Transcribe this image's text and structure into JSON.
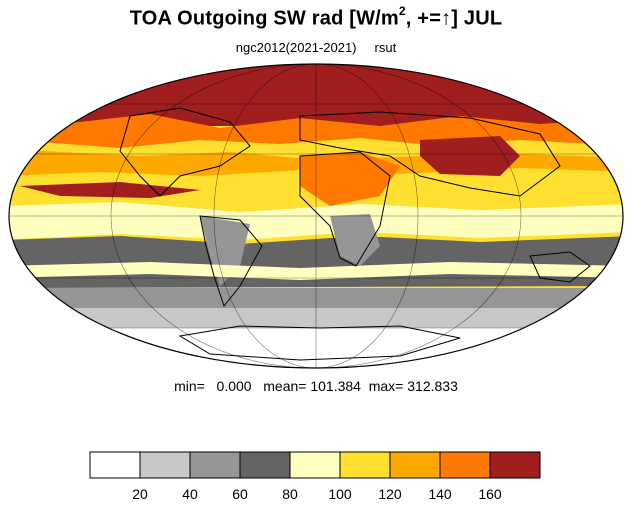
{
  "title": {
    "main": "TOA Outgoing SW rad [W/m",
    "sup": "2",
    "rest": ", +=↑] JUL"
  },
  "subtitle": {
    "case": "ngc2012(2021-2021)",
    "variable": "rsut"
  },
  "stats": {
    "min_label": "min=",
    "min": "0.000",
    "mean_label": "mean=",
    "mean": "101.384",
    "max_label": "max=",
    "max": "312.833"
  },
  "colorbar": {
    "colors": [
      "#ffffff",
      "#c8c8c8",
      "#969696",
      "#646464",
      "#ffffc0",
      "#ffe030",
      "#ffa800",
      "#ff7800",
      "#a01e1e"
    ],
    "labels": [
      "20",
      "40",
      "60",
      "80",
      "100",
      "120",
      "140",
      "160"
    ]
  }
}
